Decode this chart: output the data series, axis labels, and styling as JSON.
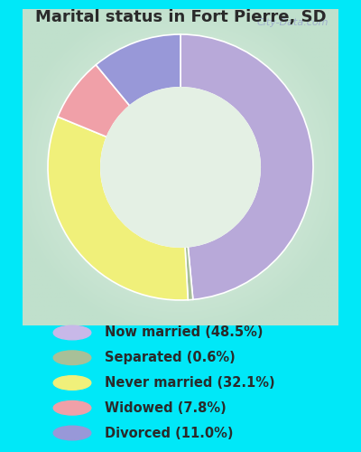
{
  "title": "Marital status in Fort Pierre, SD",
  "title_fontsize": 13,
  "title_color": "#2a2a2a",
  "slices": [
    {
      "label": "Now married (48.5%)",
      "value": 48.5,
      "color": "#b8a9d9"
    },
    {
      "label": "Separated (0.6%)",
      "value": 0.6,
      "color": "#a8c098"
    },
    {
      "label": "Never married (32.1%)",
      "value": 32.1,
      "color": "#f0f07a"
    },
    {
      "label": "Widowed (7.8%)",
      "value": 7.8,
      "color": "#f0a0a8"
    },
    {
      "label": "Divorced (11.0%)",
      "value": 11.0,
      "color": "#9898d8"
    }
  ],
  "legend_colors": [
    "#c8b8e8",
    "#a8c098",
    "#f0f07a",
    "#f0a0a8",
    "#9898d8"
  ],
  "legend_labels": [
    "Now married (48.5%)",
    "Separated (0.6%)",
    "Never married (32.1%)",
    "Widowed (7.8%)",
    "Divorced (11.0%)"
  ],
  "bg_outer": "#00e8f8",
  "bg_chart_outer": "#c8e8d0",
  "bg_chart_inner": "#e8f0e8",
  "startangle": 90,
  "legend_fontsize": 10.5,
  "legend_text_color": "#2a2a2a",
  "watermark": "City-Data.com",
  "watermark_color": "#a0b0cc",
  "watermark_fontsize": 8
}
